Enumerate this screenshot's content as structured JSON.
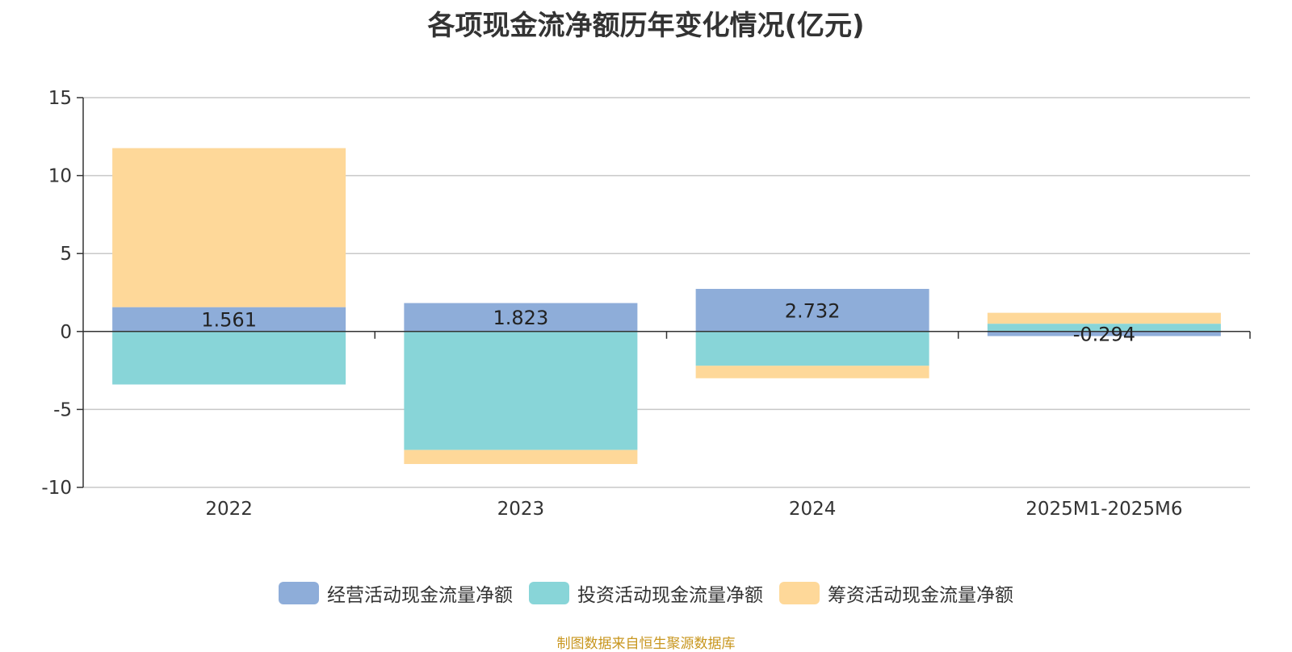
{
  "chart_data": {
    "type": "bar",
    "stacked": true,
    "title": "各项现金流净额历年变化情况(亿元)",
    "categories": [
      "2022",
      "2023",
      "2024",
      "2025M1-2025M6"
    ],
    "ylim": [
      -10,
      15
    ],
    "yticks": [
      15,
      10,
      5,
      0,
      -5,
      -10
    ],
    "grid": true,
    "legend_position": "bottom",
    "series": [
      {
        "name": "经营活动现金流量净额",
        "color": "#8eadd9",
        "values": [
          1.561,
          1.823,
          2.732,
          -0.294
        ],
        "labels": [
          "1.561",
          "1.823",
          "2.732",
          "-0.294"
        ]
      },
      {
        "name": "投资活动现金流量净额",
        "color": "#88d5d8",
        "values": [
          -3.4,
          -7.6,
          -2.2,
          0.5
        ]
      },
      {
        "name": "筹资活动现金流量净额",
        "color": "#fed899",
        "values": [
          10.2,
          -0.9,
          -0.8,
          0.7
        ]
      }
    ],
    "source": "制图数据来自恒生聚源数据库"
  }
}
